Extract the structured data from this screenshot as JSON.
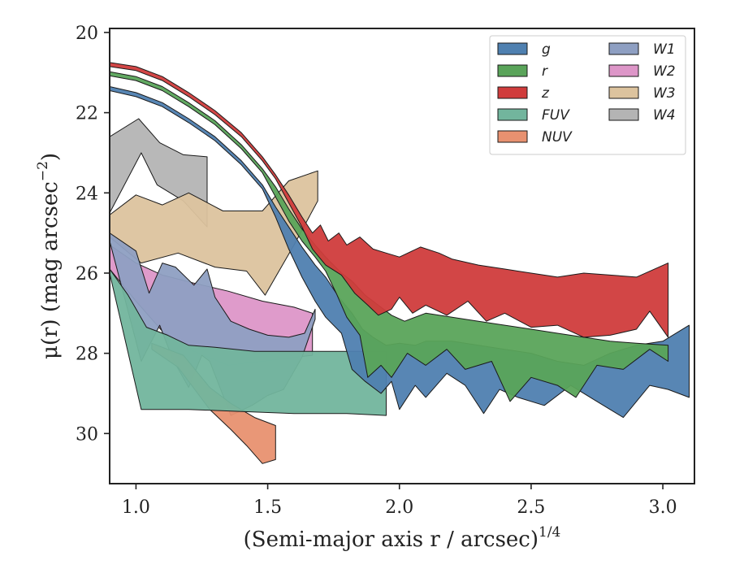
{
  "chart_data": {
    "type": "area",
    "xlabel": "(Semi-major axis r / arcsec)",
    "xlabel_exponent": "1/4",
    "ylabel": "μ(r) (mag arcsec",
    "ylabel_exponent": "−2",
    "xlim": [
      0.9,
      3.12
    ],
    "ylim": [
      31.25,
      19.9
    ],
    "y_inverted": true,
    "x_ticks": [
      1.0,
      1.5,
      2.0,
      2.5,
      3.0
    ],
    "x_tick_labels": [
      "1.0",
      "1.5",
      "2.0",
      "2.5",
      "3.0"
    ],
    "y_ticks": [
      20,
      22,
      24,
      26,
      28,
      30
    ],
    "y_tick_labels": [
      "20",
      "22",
      "24",
      "26",
      "28",
      "30"
    ],
    "grid": false,
    "legend_placement": "top-right",
    "legend_columns": 2,
    "series": [
      {
        "name": "W4",
        "color": "#b4b4b4",
        "opacity": 0.95,
        "upper": [
          [
            0.9,
            22.6
          ],
          [
            1.01,
            22.15
          ],
          [
            1.09,
            22.75
          ],
          [
            1.18,
            23.05
          ],
          [
            1.27,
            23.1
          ]
        ],
        "lower": [
          [
            0.9,
            24.5
          ],
          [
            1.02,
            23.0
          ],
          [
            1.08,
            23.8
          ],
          [
            1.18,
            24.2
          ],
          [
            1.27,
            24.85
          ]
        ]
      },
      {
        "name": "W3",
        "color": "#dcc39e",
        "opacity": 0.95,
        "upper": [
          [
            0.9,
            24.55
          ],
          [
            1.0,
            24.05
          ],
          [
            1.1,
            24.3
          ],
          [
            1.2,
            24.0
          ],
          [
            1.33,
            24.45
          ],
          [
            1.48,
            24.45
          ],
          [
            1.58,
            23.7
          ],
          [
            1.69,
            23.45
          ]
        ],
        "lower": [
          [
            0.9,
            25.1
          ],
          [
            1.02,
            25.75
          ],
          [
            1.16,
            25.5
          ],
          [
            1.3,
            25.85
          ],
          [
            1.42,
            25.95
          ],
          [
            1.49,
            26.55
          ],
          [
            1.6,
            25.3
          ],
          [
            1.69,
            24.2
          ]
        ]
      },
      {
        "name": "W2",
        "color": "#dd96c8",
        "opacity": 0.95,
        "upper": [
          [
            0.9,
            25.3
          ],
          [
            1.0,
            25.75
          ],
          [
            1.1,
            26.05
          ],
          [
            1.22,
            26.25
          ],
          [
            1.35,
            26.45
          ],
          [
            1.48,
            26.7
          ],
          [
            1.6,
            26.85
          ],
          [
            1.67,
            27.0
          ]
        ],
        "lower": [
          [
            0.9,
            25.9
          ],
          [
            1.0,
            26.7
          ],
          [
            1.1,
            27.45
          ],
          [
            1.22,
            27.95
          ],
          [
            1.35,
            28.3
          ],
          [
            1.48,
            28.2
          ],
          [
            1.6,
            28.1
          ],
          [
            1.67,
            28.05
          ]
        ]
      },
      {
        "name": "W1",
        "color": "#8e9fc2",
        "opacity": 0.95,
        "upper": [
          [
            0.9,
            25.0
          ],
          [
            1.0,
            25.45
          ],
          [
            1.05,
            26.5
          ],
          [
            1.1,
            25.75
          ],
          [
            1.15,
            25.85
          ],
          [
            1.22,
            26.3
          ],
          [
            1.27,
            25.9
          ],
          [
            1.3,
            26.6
          ],
          [
            1.36,
            27.2
          ],
          [
            1.43,
            27.4
          ],
          [
            1.5,
            27.55
          ],
          [
            1.58,
            27.6
          ],
          [
            1.64,
            27.5
          ],
          [
            1.68,
            26.9
          ]
        ],
        "lower": [
          [
            0.9,
            25.2
          ],
          [
            1.02,
            28.2
          ],
          [
            1.09,
            27.3
          ],
          [
            1.14,
            28.15
          ],
          [
            1.2,
            28.85
          ],
          [
            1.25,
            28.05
          ],
          [
            1.28,
            28.2
          ],
          [
            1.36,
            29.55
          ],
          [
            1.44,
            29.3
          ],
          [
            1.5,
            29.05
          ],
          [
            1.56,
            28.9
          ],
          [
            1.63,
            28.1
          ],
          [
            1.68,
            27.15
          ]
        ]
      },
      {
        "name": "NUV",
        "color": "#e89170",
        "opacity": 0.95,
        "upper": [
          [
            1.06,
            27.75
          ],
          [
            1.18,
            28.05
          ],
          [
            1.28,
            28.85
          ],
          [
            1.36,
            29.25
          ],
          [
            1.45,
            29.6
          ],
          [
            1.53,
            29.8
          ]
        ],
        "lower": [
          [
            1.06,
            27.9
          ],
          [
            1.16,
            28.35
          ],
          [
            1.28,
            29.4
          ],
          [
            1.36,
            29.9
          ],
          [
            1.42,
            30.3
          ],
          [
            1.48,
            30.75
          ],
          [
            1.53,
            30.65
          ]
        ]
      },
      {
        "name": "FUV",
        "color": "#72b59d",
        "opacity": 0.95,
        "upper": [
          [
            0.9,
            25.9
          ],
          [
            0.97,
            26.55
          ],
          [
            1.04,
            27.35
          ],
          [
            1.12,
            27.55
          ],
          [
            1.2,
            27.8
          ],
          [
            1.3,
            27.85
          ],
          [
            1.45,
            27.95
          ],
          [
            1.6,
            27.95
          ],
          [
            1.75,
            27.95
          ],
          [
            1.85,
            27.95
          ],
          [
            1.95,
            27.95
          ]
        ],
        "lower": [
          [
            0.9,
            26.0
          ],
          [
            1.02,
            29.4
          ],
          [
            1.2,
            29.4
          ],
          [
            1.4,
            29.45
          ],
          [
            1.6,
            29.5
          ],
          [
            1.8,
            29.5
          ],
          [
            1.95,
            29.55
          ]
        ]
      },
      {
        "name": "g",
        "color": "#4f80b0",
        "opacity": 0.95,
        "upper": [
          [
            0.9,
            21.35
          ],
          [
            1.0,
            21.5
          ],
          [
            1.1,
            21.75
          ],
          [
            1.2,
            22.15
          ],
          [
            1.3,
            22.6
          ],
          [
            1.4,
            23.2
          ],
          [
            1.48,
            23.8
          ],
          [
            1.53,
            24.35
          ],
          [
            1.58,
            24.85
          ],
          [
            1.63,
            25.35
          ],
          [
            1.68,
            25.8
          ],
          [
            1.72,
            26.1
          ],
          [
            1.77,
            26.6
          ],
          [
            1.82,
            27.0
          ],
          [
            1.86,
            27.4
          ],
          [
            1.9,
            27.6
          ],
          [
            1.95,
            27.8
          ],
          [
            2.0,
            27.75
          ],
          [
            2.06,
            27.8
          ],
          [
            2.1,
            27.7
          ],
          [
            2.2,
            27.7
          ],
          [
            2.3,
            27.8
          ],
          [
            2.4,
            27.9
          ],
          [
            2.5,
            28.0
          ],
          [
            2.6,
            28.2
          ],
          [
            2.7,
            28.3
          ],
          [
            2.8,
            28.0
          ],
          [
            2.9,
            27.8
          ],
          [
            3.0,
            27.7
          ],
          [
            3.1,
            27.3
          ]
        ],
        "lower": [
          [
            0.9,
            21.45
          ],
          [
            1.0,
            21.6
          ],
          [
            1.1,
            21.85
          ],
          [
            1.2,
            22.25
          ],
          [
            1.3,
            22.7
          ],
          [
            1.4,
            23.3
          ],
          [
            1.48,
            23.9
          ],
          [
            1.53,
            24.6
          ],
          [
            1.58,
            25.4
          ],
          [
            1.63,
            26.1
          ],
          [
            1.68,
            26.7
          ],
          [
            1.72,
            27.1
          ],
          [
            1.78,
            27.5
          ],
          [
            1.82,
            28.4
          ],
          [
            1.87,
            28.7
          ],
          [
            1.93,
            29.0
          ],
          [
            1.97,
            28.7
          ],
          [
            2.0,
            29.4
          ],
          [
            2.06,
            28.8
          ],
          [
            2.1,
            29.1
          ],
          [
            2.18,
            28.5
          ],
          [
            2.25,
            28.8
          ],
          [
            2.32,
            29.5
          ],
          [
            2.38,
            28.9
          ],
          [
            2.45,
            29.1
          ],
          [
            2.55,
            29.3
          ],
          [
            2.65,
            28.8
          ],
          [
            2.75,
            29.2
          ],
          [
            2.85,
            29.6
          ],
          [
            2.95,
            28.8
          ],
          [
            3.02,
            28.9
          ],
          [
            3.1,
            29.1
          ]
        ]
      },
      {
        "name": "r",
        "color": "#5aa45a",
        "opacity": 0.95,
        "upper": [
          [
            0.9,
            20.98
          ],
          [
            1.0,
            21.1
          ],
          [
            1.1,
            21.35
          ],
          [
            1.2,
            21.75
          ],
          [
            1.3,
            22.2
          ],
          [
            1.4,
            22.8
          ],
          [
            1.48,
            23.4
          ],
          [
            1.53,
            23.85
          ],
          [
            1.58,
            24.4
          ],
          [
            1.63,
            24.9
          ],
          [
            1.68,
            25.3
          ],
          [
            1.72,
            25.6
          ],
          [
            1.78,
            26.0
          ],
          [
            1.82,
            26.2
          ],
          [
            1.87,
            26.55
          ],
          [
            1.92,
            26.8
          ],
          [
            1.97,
            27.05
          ],
          [
            2.02,
            27.2
          ],
          [
            2.1,
            27.0
          ],
          [
            2.2,
            27.1
          ],
          [
            2.3,
            27.2
          ],
          [
            2.4,
            27.3
          ],
          [
            2.5,
            27.4
          ],
          [
            2.6,
            27.5
          ],
          [
            2.7,
            27.6
          ],
          [
            2.8,
            27.7
          ],
          [
            2.9,
            27.75
          ],
          [
            3.02,
            27.8
          ]
        ],
        "lower": [
          [
            0.9,
            21.08
          ],
          [
            1.0,
            21.2
          ],
          [
            1.1,
            21.45
          ],
          [
            1.2,
            21.85
          ],
          [
            1.3,
            22.3
          ],
          [
            1.4,
            22.9
          ],
          [
            1.48,
            23.5
          ],
          [
            1.53,
            24.1
          ],
          [
            1.58,
            24.7
          ],
          [
            1.63,
            25.2
          ],
          [
            1.68,
            25.6
          ],
          [
            1.72,
            25.95
          ],
          [
            1.76,
            26.5
          ],
          [
            1.8,
            27.1
          ],
          [
            1.85,
            27.55
          ],
          [
            1.88,
            28.6
          ],
          [
            1.93,
            28.3
          ],
          [
            1.97,
            28.6
          ],
          [
            2.03,
            28.0
          ],
          [
            2.1,
            28.3
          ],
          [
            2.18,
            27.9
          ],
          [
            2.25,
            28.4
          ],
          [
            2.35,
            28.2
          ],
          [
            2.42,
            29.2
          ],
          [
            2.5,
            28.6
          ],
          [
            2.6,
            28.8
          ],
          [
            2.67,
            29.1
          ],
          [
            2.75,
            28.3
          ],
          [
            2.85,
            28.4
          ],
          [
            2.95,
            27.9
          ],
          [
            3.02,
            28.2
          ]
        ]
      },
      {
        "name": "z",
        "color": "#d03c3c",
        "opacity": 0.95,
        "upper": [
          [
            0.9,
            20.75
          ],
          [
            1.0,
            20.85
          ],
          [
            1.1,
            21.1
          ],
          [
            1.2,
            21.5
          ],
          [
            1.3,
            21.95
          ],
          [
            1.4,
            22.5
          ],
          [
            1.48,
            23.1
          ],
          [
            1.53,
            23.55
          ],
          [
            1.58,
            24.05
          ],
          [
            1.63,
            24.6
          ],
          [
            1.67,
            25.0
          ],
          [
            1.7,
            24.8
          ],
          [
            1.73,
            25.2
          ],
          [
            1.77,
            25.0
          ],
          [
            1.8,
            25.3
          ],
          [
            1.85,
            25.1
          ],
          [
            1.9,
            25.4
          ],
          [
            1.95,
            25.5
          ],
          [
            2.0,
            25.6
          ],
          [
            2.08,
            25.35
          ],
          [
            2.15,
            25.5
          ],
          [
            2.2,
            25.65
          ],
          [
            2.3,
            25.8
          ],
          [
            2.4,
            25.9
          ],
          [
            2.5,
            26.0
          ],
          [
            2.6,
            26.1
          ],
          [
            2.7,
            26.0
          ],
          [
            2.8,
            26.05
          ],
          [
            2.9,
            26.1
          ],
          [
            3.02,
            25.75
          ]
        ],
        "lower": [
          [
            0.9,
            20.85
          ],
          [
            1.0,
            20.95
          ],
          [
            1.1,
            21.2
          ],
          [
            1.2,
            21.6
          ],
          [
            1.3,
            22.05
          ],
          [
            1.4,
            22.6
          ],
          [
            1.48,
            23.2
          ],
          [
            1.53,
            23.65
          ],
          [
            1.58,
            24.25
          ],
          [
            1.63,
            24.85
          ],
          [
            1.67,
            25.4
          ],
          [
            1.72,
            25.8
          ],
          [
            1.78,
            26.05
          ],
          [
            1.83,
            26.5
          ],
          [
            1.88,
            26.8
          ],
          [
            1.92,
            27.05
          ],
          [
            1.97,
            26.9
          ],
          [
            2.0,
            26.6
          ],
          [
            2.05,
            27.0
          ],
          [
            2.1,
            26.8
          ],
          [
            2.18,
            27.05
          ],
          [
            2.26,
            26.7
          ],
          [
            2.33,
            27.2
          ],
          [
            2.4,
            27.0
          ],
          [
            2.5,
            27.35
          ],
          [
            2.6,
            27.3
          ],
          [
            2.7,
            27.6
          ],
          [
            2.8,
            27.55
          ],
          [
            2.9,
            27.4
          ],
          [
            2.95,
            26.95
          ],
          [
            3.02,
            27.6
          ]
        ]
      }
    ],
    "legend": [
      {
        "name": "g",
        "color": "#4f80b0"
      },
      {
        "name": "r",
        "color": "#5aa45a"
      },
      {
        "name": "z",
        "color": "#d03c3c"
      },
      {
        "name": "FUV",
        "color": "#72b59d"
      },
      {
        "name": "NUV",
        "color": "#e89170"
      },
      {
        "name": "W1",
        "color": "#8e9fc2"
      },
      {
        "name": "W2",
        "color": "#dd96c8"
      },
      {
        "name": "W3",
        "color": "#dcc39e"
      },
      {
        "name": "W4",
        "color": "#b4b4b4"
      }
    ]
  }
}
